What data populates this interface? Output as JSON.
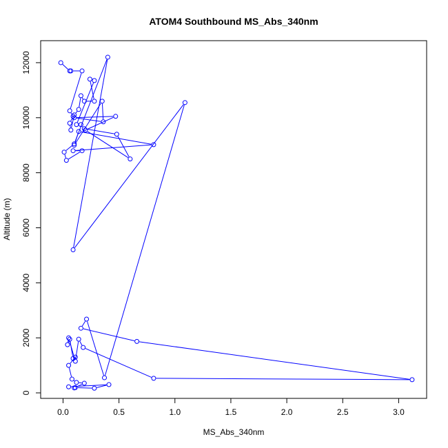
{
  "chart_data": {
    "type": "line",
    "title": "ATOM4 Southbound MS_Abs_340nm",
    "xlabel": "MS_Abs_340nm",
    "ylabel": "Altitude (m)",
    "xlim": [
      -0.2,
      3.25
    ],
    "ylim": [
      -200,
      12800
    ],
    "x_ticks": [
      0.0,
      0.5,
      1.0,
      1.5,
      2.0,
      2.5,
      3.0
    ],
    "x_tick_labels": [
      "0.0",
      "0.5",
      "1.0",
      "1.5",
      "2.0",
      "2.5",
      "3.0"
    ],
    "y_ticks": [
      0,
      2000,
      4000,
      6000,
      8000,
      10000,
      12000
    ],
    "y_tick_labels": [
      "0",
      "2000",
      "4000",
      "6000",
      "8000",
      "10000",
      "12000"
    ],
    "grid": false,
    "legend": "none",
    "marker": "open-circle",
    "series": [
      {
        "color": "#0000ff",
        "points": [
          [
            -0.02,
            12000
          ],
          [
            0.06,
            11700
          ],
          [
            0.07,
            11700
          ],
          [
            0.17,
            11700
          ],
          [
            0.06,
            10250
          ],
          [
            0.09,
            10050
          ],
          [
            0.06,
            9800
          ],
          [
            0.07,
            9550
          ],
          [
            0.1,
            10100
          ],
          [
            0.14,
            10300
          ],
          [
            0.16,
            10800
          ],
          [
            0.19,
            10600
          ],
          [
            0.28,
            10600
          ],
          [
            0.24,
            11400
          ],
          [
            0.28,
            11350
          ],
          [
            0.12,
            9750
          ],
          [
            0.16,
            9750
          ],
          [
            0.19,
            9600
          ],
          [
            0.48,
            9400
          ],
          [
            0.6,
            8500
          ],
          [
            0.2,
            9550
          ],
          [
            0.47,
            10050
          ],
          [
            0.1,
            10000
          ],
          [
            0.36,
            9850
          ],
          [
            0.35,
            10600
          ],
          [
            0.1,
            9000
          ],
          [
            0.14,
            9500
          ],
          [
            0.81,
            9020
          ],
          [
            0.09,
            8800
          ],
          [
            0.17,
            8800
          ],
          [
            0.03,
            8450
          ],
          [
            0.01,
            8750
          ],
          [
            0.1,
            9050
          ],
          [
            0.4,
            12200
          ],
          [
            0.09,
            5200
          ],
          [
            1.09,
            10550
          ],
          [
            0.37,
            550
          ],
          [
            0.21,
            2680
          ],
          [
            0.16,
            2350
          ],
          [
            0.66,
            1870
          ],
          [
            3.12,
            480
          ],
          [
            0.81,
            530
          ],
          [
            0.18,
            1650
          ],
          [
            0.14,
            1950
          ],
          [
            0.11,
            1150
          ],
          [
            0.05,
            2000
          ],
          [
            0.04,
            1750
          ],
          [
            0.06,
            1950
          ],
          [
            0.09,
            1250
          ],
          [
            0.11,
            1300
          ],
          [
            0.05,
            1000
          ],
          [
            0.08,
            500
          ],
          [
            0.12,
            380
          ],
          [
            0.19,
            350
          ],
          [
            0.1,
            180
          ],
          [
            0.11,
            190
          ],
          [
            0.28,
            170
          ],
          [
            0.41,
            300
          ],
          [
            0.05,
            220
          ]
        ]
      }
    ]
  }
}
